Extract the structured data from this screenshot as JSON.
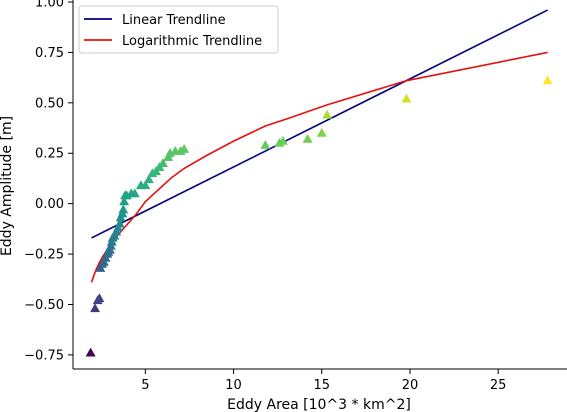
{
  "chart_data": {
    "type": "scatter",
    "title": "",
    "xlabel": "Eddy Area [10^3 * km^2]",
    "ylabel": "Eddy Amplitude [m]",
    "xlim": [
      0.9,
      28.9
    ],
    "ylim": [
      -0.82,
      1.01
    ],
    "xticks": [
      5,
      10,
      15,
      20,
      25
    ],
    "xtick_labels": [
      "5",
      "10",
      "15",
      "20",
      "25"
    ],
    "yticks": [
      -0.75,
      -0.5,
      -0.25,
      0.0,
      0.25,
      0.5,
      0.75,
      1.0
    ],
    "ytick_labels": [
      "−0.75",
      "−0.50",
      "−0.25",
      "0.00",
      "0.25",
      "0.50",
      "0.75",
      "1.00"
    ],
    "grid": false,
    "legend": {
      "placement": "top-left",
      "entries": [
        "Linear Trendline",
        "Logarithmic Trendline"
      ]
    },
    "series": [
      {
        "name": "Linear Trendline",
        "kind": "line",
        "color": "#000080",
        "x": [
          1.95,
          27.8
        ],
        "y": [
          -0.17,
          0.96
        ]
      },
      {
        "name": "Logarithmic Trendline",
        "kind": "line",
        "color": "#e8100e",
        "x": [
          1.95,
          2.15,
          2.35,
          2.6,
          2.9,
          3.2,
          3.5,
          3.8,
          4.1,
          4.5,
          5.0,
          5.5,
          6.0,
          6.5,
          7.2,
          8.5,
          10.0,
          11.8,
          13.0,
          15.3,
          19.8,
          27.8
        ],
        "y": [
          -0.39,
          -0.34,
          -0.3,
          -0.26,
          -0.22,
          -0.18,
          -0.15,
          -0.12,
          -0.09,
          -0.05,
          0.01,
          0.05,
          0.09,
          0.13,
          0.175,
          0.24,
          0.31,
          0.385,
          0.42,
          0.49,
          0.61,
          0.75
        ]
      },
      {
        "kind": "scatter",
        "marker": "triangle",
        "colormap": "viridis",
        "x": [
          1.9,
          2.15,
          2.3,
          2.4,
          2.45,
          2.55,
          2.65,
          2.75,
          2.85,
          2.9,
          3.0,
          3.05,
          3.1,
          3.15,
          3.25,
          3.35,
          3.45,
          3.55,
          3.6,
          3.7,
          3.75,
          3.8,
          3.85,
          3.95,
          4.2,
          4.4,
          4.75,
          5.0,
          5.2,
          5.4,
          5.6,
          5.8,
          6.0,
          6.3,
          6.4,
          6.7,
          7.0,
          7.2,
          11.8,
          12.6,
          12.8,
          14.2,
          15.0,
          15.3,
          19.8,
          27.8
        ],
        "y": [
          -0.74,
          -0.52,
          -0.48,
          -0.47,
          -0.32,
          -0.3,
          -0.29,
          -0.27,
          -0.25,
          -0.24,
          -0.23,
          -0.21,
          -0.19,
          -0.17,
          -0.16,
          -0.14,
          -0.12,
          -0.1,
          -0.07,
          -0.05,
          -0.03,
          0.01,
          0.04,
          0.04,
          0.05,
          0.05,
          0.09,
          0.09,
          0.12,
          0.15,
          0.16,
          0.18,
          0.2,
          0.23,
          0.25,
          0.26,
          0.26,
          0.27,
          0.29,
          0.3,
          0.31,
          0.32,
          0.35,
          0.44,
          0.52,
          0.61
        ]
      }
    ]
  }
}
